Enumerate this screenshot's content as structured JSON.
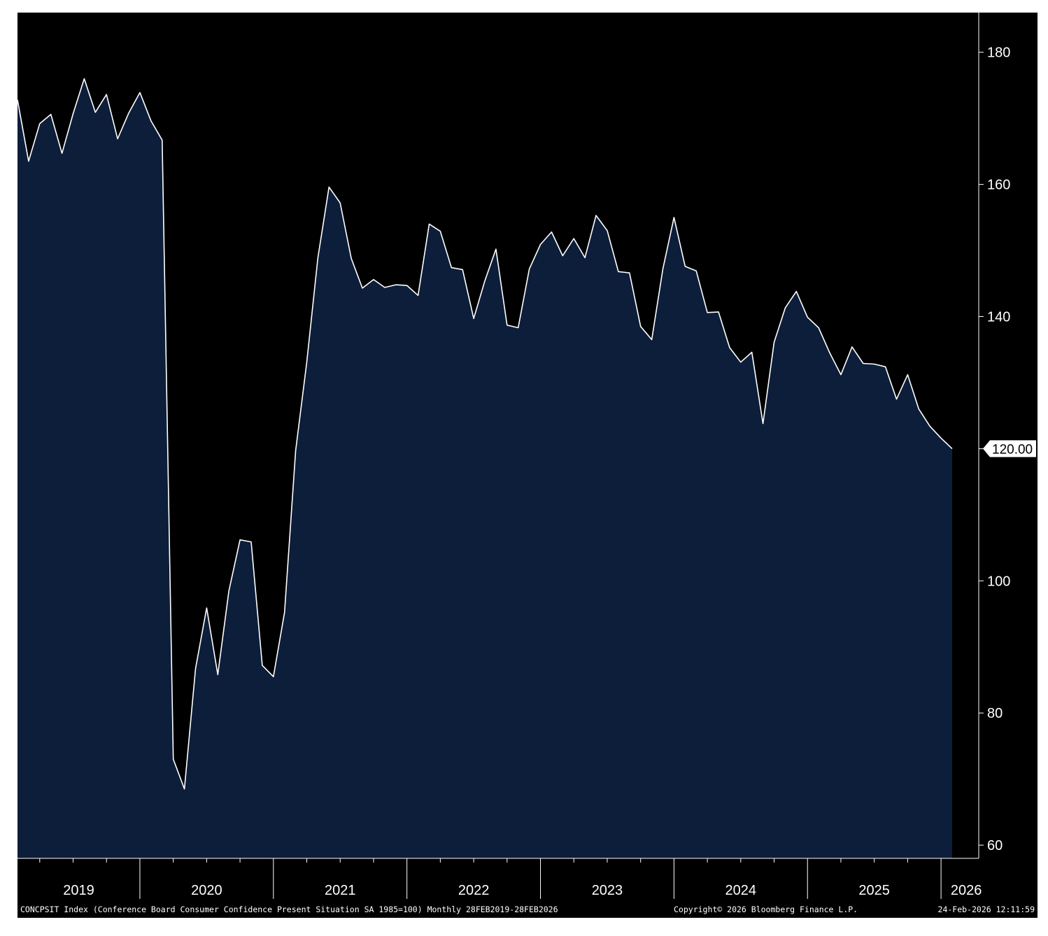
{
  "chart_data": {
    "type": "area",
    "ylim": [
      58,
      186
    ],
    "y_ticks": [
      "180",
      "160",
      "140",
      "120",
      "100",
      "80",
      "60"
    ],
    "y_tick_values": [
      180,
      160,
      140,
      120,
      100,
      80,
      60
    ],
    "x_start": "2019-02",
    "x_end": "2026-02",
    "year_labels": [
      "2019",
      "2020",
      "2021",
      "2022",
      "2023",
      "2024",
      "2025",
      "2026"
    ],
    "last_value_label": "120.00",
    "colors": {
      "fill": "#0d1e3b",
      "line": "#ffffff",
      "background": "#000000",
      "axis": "#ffffff"
    },
    "series": [
      {
        "dates": [
          "2019-02",
          "2019-03",
          "2019-04",
          "2019-05",
          "2019-06",
          "2019-07",
          "2019-08",
          "2019-09",
          "2019-10",
          "2019-11",
          "2019-12",
          "2020-01",
          "2020-02",
          "2020-03",
          "2020-04",
          "2020-05",
          "2020-06",
          "2020-07",
          "2020-08",
          "2020-09",
          "2020-10",
          "2020-11",
          "2020-12",
          "2021-01",
          "2021-02",
          "2021-03",
          "2021-04",
          "2021-05",
          "2021-06",
          "2021-07",
          "2021-08",
          "2021-09",
          "2021-10",
          "2021-11",
          "2021-12",
          "2022-01",
          "2022-02",
          "2022-03",
          "2022-04",
          "2022-05",
          "2022-06",
          "2022-07",
          "2022-08",
          "2022-09",
          "2022-10",
          "2022-11",
          "2022-12",
          "2023-01",
          "2023-02",
          "2023-03",
          "2023-04",
          "2023-05",
          "2023-06",
          "2023-07",
          "2023-08",
          "2023-09",
          "2023-10",
          "2023-11",
          "2023-12",
          "2024-01",
          "2024-02",
          "2024-03",
          "2024-04",
          "2024-05",
          "2024-06",
          "2024-07",
          "2024-08",
          "2024-09",
          "2024-10",
          "2024-11",
          "2024-12",
          "2025-01",
          "2025-02",
          "2025-03",
          "2025-04",
          "2025-05",
          "2025-06",
          "2025-07",
          "2025-08",
          "2025-09",
          "2025-10",
          "2025-11",
          "2025-12",
          "2026-01",
          "2026-02"
        ],
        "values": [
          172.8,
          163.5,
          169.2,
          170.6,
          164.7,
          170.7,
          176.0,
          170.9,
          173.6,
          166.9,
          170.8,
          173.9,
          169.6,
          166.7,
          73.0,
          68.5,
          86.7,
          95.9,
          85.8,
          98.5,
          106.2,
          105.9,
          87.2,
          85.5,
          95.2,
          119.7,
          133.1,
          148.9,
          159.6,
          157.2,
          148.8,
          144.3,
          145.6,
          144.4,
          144.8,
          144.7,
          143.2,
          154.0,
          152.9,
          147.4,
          147.1,
          139.7,
          145.4,
          150.2,
          138.7,
          138.3,
          147.2,
          150.9,
          152.8,
          149.2,
          151.8,
          148.9,
          155.3,
          153.0,
          146.8,
          146.6,
          138.5,
          136.5,
          147.2,
          155.0,
          147.6,
          146.9,
          140.6,
          140.7,
          135.3,
          133.1,
          134.6,
          123.8,
          136.1,
          141.3,
          143.8,
          139.9,
          138.3,
          134.5,
          131.2,
          135.4,
          132.9,
          132.8,
          132.4,
          127.5,
          131.2,
          126.0,
          123.4,
          121.6,
          120.0
        ]
      }
    ]
  },
  "footer": {
    "description": "CONCPSIT Index (Conference Board Consumer Confidence Present Situation SA 1985=100) Monthly 28FEB2019-28FEB2026",
    "copyright": "Copyright© 2026 Bloomberg Finance L.P.",
    "timestamp": "24-Feb-2026 12:11:59"
  }
}
